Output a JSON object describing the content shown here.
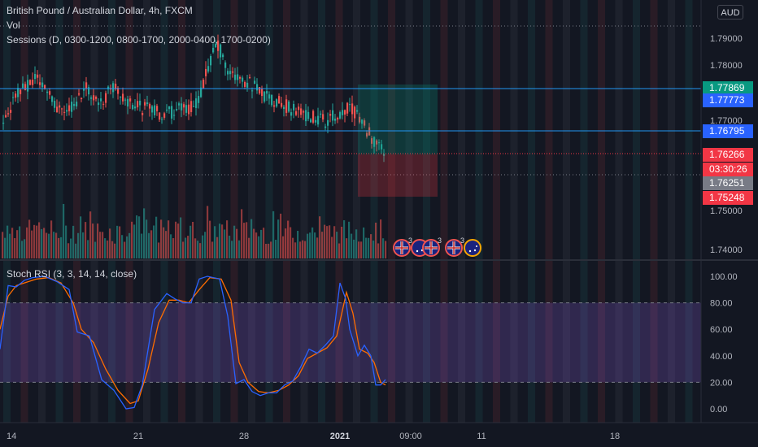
{
  "symbol": {
    "title": "British Pound / Australian Dollar, 4h, FXCM",
    "vol_label": "Vol",
    "sessions_label": "Sessions (D, 0300-1200, 0800-1700, 2000-0400, 1700-0200)"
  },
  "currency_button": "AUD",
  "price_axis": {
    "ticks": [
      "1.79000",
      "1.78000",
      "1.77000",
      "1.76000",
      "1.75000",
      "1.74000"
    ]
  },
  "price_tags": [
    {
      "label": "1.77869",
      "color": "#089981"
    },
    {
      "label": "1.77773",
      "color": "#2962ff"
    },
    {
      "label": "1.76795",
      "color": "#2962ff"
    },
    {
      "label": "1.76266",
      "color": "#f23645"
    },
    {
      "label": "03:30:26",
      "color": "#f23645"
    },
    {
      "label": "1.76251",
      "color": "#787b86"
    },
    {
      "label": "1.75248",
      "color": "#f23645"
    }
  ],
  "events": [
    {
      "icon": "gb-flag-icon",
      "badge": "3"
    },
    {
      "icon": "au-flag-icon",
      "badge": ""
    },
    {
      "icon": "gb-flag-icon",
      "badge": "3"
    },
    {
      "icon": "gb-flag-icon",
      "badge": "3"
    },
    {
      "icon": "au-flag-icon",
      "badge": ""
    }
  ],
  "stoch": {
    "label": "Stoch RSI (3, 3, 14, 14, close)",
    "ticks": [
      "100.00",
      "80.00",
      "60.00",
      "40.00",
      "20.00",
      "0.00"
    ],
    "band_color": "#7e57c2",
    "k_color": "#2962ff",
    "d_color": "#ff6d00"
  },
  "time_axis": {
    "labels": [
      "14",
      "21",
      "28",
      "2021",
      "09:00",
      "11",
      "18"
    ]
  },
  "colors": {
    "up": "#26a69a",
    "down": "#ef5350",
    "background": "#131722"
  }
}
